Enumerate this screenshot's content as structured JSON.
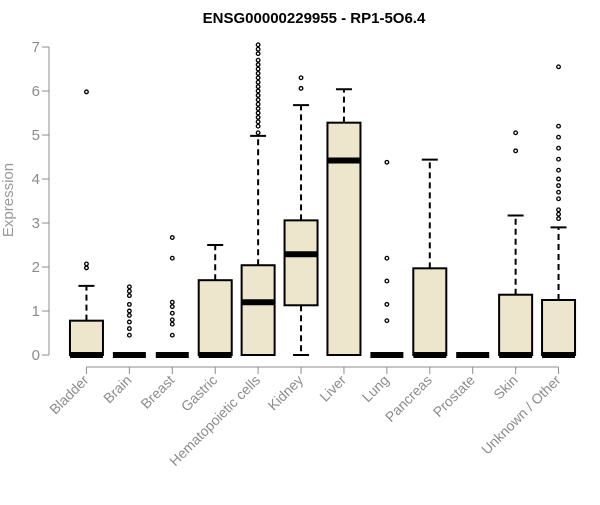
{
  "chart_data": {
    "type": "box",
    "title": "ENSG00000229955 - RP1-5O6.4",
    "xlabel": "",
    "ylabel": "Expression",
    "ylim": [
      0,
      7
    ],
    "yticks": [
      0,
      1,
      2,
      3,
      4,
      5,
      6,
      7
    ],
    "grid": false,
    "box_fill": "#ede6cc",
    "outline_color": "#000000",
    "axis_color": "#8c8c8c",
    "categories": [
      "Bladder",
      "Brain",
      "Breast",
      "Gastric",
      "Hematopoietic cells",
      "Kidney",
      "Liver",
      "Lung",
      "Pancreas",
      "Prostate",
      "Skin",
      "Unknown / Other"
    ],
    "boxes": [
      {
        "q1": 0,
        "median": 0,
        "q3": 0.78,
        "whisker_low": 0,
        "whisker_high": 1.57,
        "outliers": [
          1.98,
          2.07,
          5.98
        ]
      },
      {
        "q1": 0,
        "median": 0,
        "q3": 0,
        "whisker_low": 0,
        "whisker_high": 0,
        "outliers": [
          0.45,
          0.6,
          0.75,
          0.9,
          1.0,
          1.15,
          1.35,
          1.45,
          1.55
        ]
      },
      {
        "q1": 0,
        "median": 0,
        "q3": 0,
        "whisker_low": 0,
        "whisker_high": 0,
        "outliers": [
          0.45,
          0.7,
          0.8,
          0.95,
          1.1,
          1.2,
          2.2,
          2.67
        ]
      },
      {
        "q1": 0,
        "median": 0,
        "q3": 1.7,
        "whisker_low": 0,
        "whisker_high": 2.5,
        "outliers": []
      },
      {
        "q1": 0,
        "median": 1.2,
        "q3": 2.04,
        "whisker_low": 0,
        "whisker_high": 4.98,
        "outliers": [
          5.05,
          5.2,
          5.3,
          5.4,
          5.5,
          5.6,
          5.7,
          5.8,
          5.9,
          6.0,
          6.1,
          6.2,
          6.3,
          6.4,
          6.5,
          6.6,
          6.7,
          6.85,
          6.95,
          7.05
        ]
      },
      {
        "q1": 1.13,
        "median": 2.29,
        "q3": 3.06,
        "whisker_low": 0,
        "whisker_high": 5.68,
        "outliers": [
          6.06,
          6.3
        ]
      },
      {
        "q1": 0,
        "median": 4.42,
        "q3": 5.28,
        "whisker_low": 0,
        "whisker_high": 6.04,
        "outliers": []
      },
      {
        "q1": 0,
        "median": 0,
        "q3": 0,
        "whisker_low": 0,
        "whisker_high": 0,
        "outliers": [
          0.78,
          1.15,
          1.68,
          2.2,
          4.38
        ]
      },
      {
        "q1": 0,
        "median": 0,
        "q3": 1.97,
        "whisker_low": 0,
        "whisker_high": 4.44,
        "outliers": []
      },
      {
        "q1": 0,
        "median": 0,
        "q3": 0,
        "whisker_low": 0,
        "whisker_high": 0,
        "outliers": []
      },
      {
        "q1": 0,
        "median": 0,
        "q3": 1.37,
        "whisker_low": 0,
        "whisker_high": 3.17,
        "outliers": [
          4.64,
          5.05
        ]
      },
      {
        "q1": 0,
        "median": 0,
        "q3": 1.25,
        "whisker_low": 0,
        "whisker_high": 2.9,
        "outliers": [
          3.1,
          3.2,
          3.3,
          3.55,
          3.7,
          3.85,
          4.0,
          4.2,
          4.45,
          4.7,
          4.95,
          5.2,
          6.55
        ]
      }
    ]
  }
}
